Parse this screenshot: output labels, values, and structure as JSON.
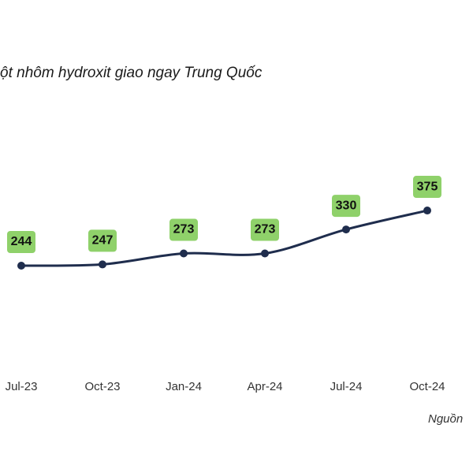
{
  "chart_data": {
    "type": "line",
    "title": "ột nhôm hydroxit giao ngay Trung Quốc",
    "categories": [
      "Jul-23",
      "Oct-23",
      "Jan-24",
      "Apr-24",
      "Jul-24",
      "Oct-24"
    ],
    "values": [
      244,
      247,
      273,
      273,
      330,
      375
    ],
    "color": "#1f2d4d",
    "label_color": "#8fd16a",
    "source": "Nguồn"
  }
}
